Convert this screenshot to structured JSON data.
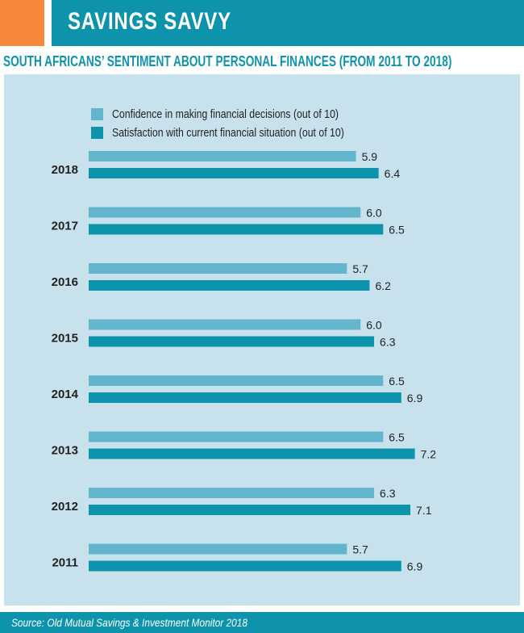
{
  "header": {
    "title": "SAVINGS SAVVY",
    "subtitle": "SOUTH AFRICANS’ SENTIMENT ABOUT PERSONAL FINANCES (FROM 2011 TO 2018)"
  },
  "colors": {
    "accent": "#f6863a",
    "brand": "#0e93ac",
    "panel": "#c8e2ed",
    "confidence": "#62b5cc",
    "satisfaction": "#0e93ac"
  },
  "chart_data": {
    "type": "bar",
    "orientation": "horizontal",
    "categories": [
      "2018",
      "2017",
      "2016",
      "2015",
      "2014",
      "2013",
      "2012",
      "2011"
    ],
    "series": [
      {
        "name": "Confidence in making financial decisions (out of 10)",
        "values": [
          5.9,
          6.0,
          5.7,
          6.0,
          6.5,
          6.5,
          6.3,
          5.7
        ]
      },
      {
        "name": "Satisfaction with current financial situation (out of 10)",
        "values": [
          6.4,
          6.5,
          6.2,
          6.3,
          6.9,
          7.2,
          7.1,
          6.9
        ]
      }
    ],
    "xlim": [
      0,
      10
    ],
    "legend": "top-left",
    "grid": false
  },
  "footer": {
    "source": "Source: Old Mutual Savings & Investment Monitor 2018"
  }
}
